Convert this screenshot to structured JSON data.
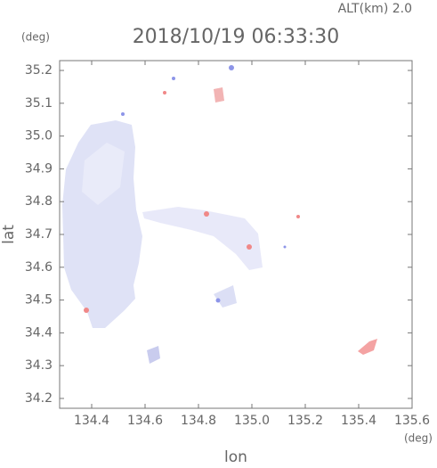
{
  "chart_data": {
    "type": "map",
    "title": "2018/10/19 06:33:30",
    "subtitle": "ALT(km) 2.0",
    "x_label": "lon",
    "y_label": "lat",
    "x_unit": "(deg)",
    "y_unit": "(deg)",
    "xlim": [
      134.28,
      135.6
    ],
    "xticks": [
      134.4,
      134.6,
      134.8,
      {
        "value": 135,
        "label": "135.0"
      },
      135.2,
      135.4,
      135.6
    ],
    "ylim": [
      34.17,
      35.23
    ],
    "yticks": [
      34.2,
      34.3,
      34.4,
      34.5,
      34.6,
      34.7,
      34.8,
      34.9,
      {
        "value": 35,
        "label": "35.0"
      },
      35.1,
      35.2
    ]
  }
}
